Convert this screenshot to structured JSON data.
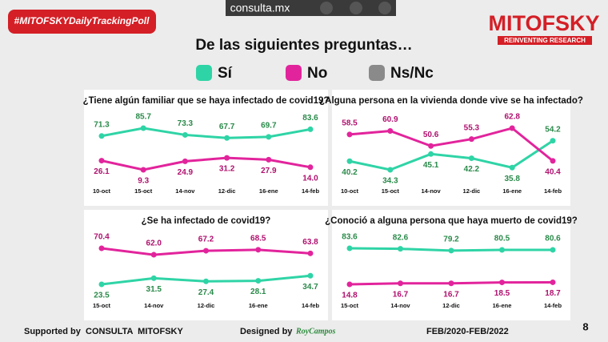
{
  "header": {
    "hashtag": "#MITOFSKYDailyTrackingPoll",
    "site": "consulta.mx",
    "brand": "MITOFSKY",
    "tagline": "REINVENTING RESEARCH",
    "heading": "De las siguientes preguntas…"
  },
  "legend": [
    {
      "name": "Sí",
      "color": "#2fd4a6"
    },
    {
      "name": "No",
      "color": "#e2249c"
    },
    {
      "name": "Ns/Nc",
      "color": "#8a8a8a"
    }
  ],
  "chart_data": [
    {
      "type": "line",
      "title": "¿Tiene algún familiar que se haya infectado de covid19?",
      "categories": [
        "10-oct",
        "15-oct",
        "14-nov",
        "12-dic",
        "16-ene",
        "14-feb"
      ],
      "series": [
        {
          "color": "#2fd4a6",
          "values": [
            71.3,
            85.7,
            73.3,
            67.7,
            69.7,
            83.6
          ]
        },
        {
          "color": "#e2249c",
          "values": [
            26.1,
            9.3,
            24.9,
            31.2,
            27.9,
            14.0
          ],
          "value_labels": [
            "26.1",
            "9.3",
            "24.9",
            "31.2",
            "27.9",
            "14.0"
          ]
        }
      ]
    },
    {
      "type": "line",
      "title": "¿Alguna persona en la vivienda donde vive se ha infectado?",
      "categories": [
        "10-oct",
        "15-oct",
        "14-nov",
        "12-dic",
        "16-ene",
        "14-feb"
      ],
      "series": [
        {
          "color": "#2fd4a6",
          "values": [
            40.2,
            34.3,
            45.1,
            42.2,
            35.8,
            54.2
          ]
        },
        {
          "color": "#e2249c",
          "values": [
            58.5,
            60.9,
            50.6,
            55.3,
            62.8,
            40.4
          ]
        }
      ]
    },
    {
      "type": "line",
      "title": "¿Se ha infectado de covid19?",
      "categories": [
        "15-oct",
        "14-nov",
        "12-dic",
        "16-ene",
        "14-feb"
      ],
      "series": [
        {
          "color": "#2fd4a6",
          "values": [
            23.5,
            31.5,
            27.4,
            28.1,
            34.7
          ]
        },
        {
          "color": "#e2249c",
          "values": [
            70.4,
            62.0,
            67.2,
            68.5,
            63.8
          ],
          "value_labels": [
            "70.4",
            "62.0",
            "67.2",
            "68.5",
            "63.8"
          ]
        }
      ]
    },
    {
      "type": "line",
      "title": "¿Conoció a alguna persona que haya muerto de covid19?",
      "categories": [
        "15-oct",
        "14-nov",
        "12-dic",
        "16-ene",
        "14-feb"
      ],
      "series": [
        {
          "color": "#2fd4a6",
          "values": [
            83.6,
            82.6,
            79.2,
            80.5,
            80.6
          ]
        },
        {
          "color": "#e2249c",
          "values": [
            14.8,
            16.7,
            16.7,
            18.5,
            18.7
          ]
        }
      ]
    }
  ],
  "footer": {
    "supported": "Supported by  CONSULTA  MITOFSKY",
    "designed": "Designed by",
    "designer": "RoyCampos",
    "period": "FEB/2020-FEB/2022",
    "page": "8"
  }
}
